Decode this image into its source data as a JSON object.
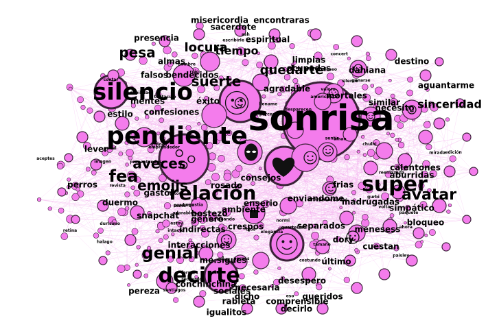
{
  "colors": {
    "node_fill": "#f47cec",
    "node_stroke": "#3a2238",
    "edge": "#f2a6ec",
    "background": "#ffffff"
  },
  "large_labels": [
    "sonrisa",
    "pendiente",
    "silencio",
    "decirte",
    "relación",
    "super",
    "avatar",
    "genial",
    "aveces",
    "fea",
    "emojis",
    "suerte",
    "pesa",
    "locura",
    "quedarte",
    "sinceridad",
    "tiempo"
  ],
  "medium_labels": [
    "ambiente",
    "consejos",
    "separados",
    "indirectas",
    "madrugadas",
    "menesess",
    "simpático",
    "bloqueo",
    "dory",
    "duermo",
    "perros",
    "desespero",
    "queridos",
    "decirlo",
    "necesaria",
    "dicho",
    "interacciones",
    "gastos",
    "calentones",
    "aburridas",
    "frias",
    "enviandome",
    "enserio",
    "rosado",
    "crespos",
    "bostezo",
    "mortales",
    "agradable",
    "estilo",
    "mentes",
    "confesiones",
    "éxito",
    "falsos",
    "bendecidos",
    "presencia",
    "almas",
    "limpias",
    "ocupadas",
    "dahiana",
    "destino",
    "similar",
    "necesito",
    "sacerdote",
    "misericordia",
    "encontraras",
    "espiritual",
    "snapchat",
    "pereza",
    "sociales",
    "rabieta",
    "igualitos",
    "comprensible",
    "conchinchina",
    "lever",
    "me.sigues",
    "aguantarme",
    "cuestan",
    "último",
    "genero"
  ],
  "small_labels": [
    "maricadas",
    "santiagos",
    "panal",
    "volta",
    "pernas",
    "rojo",
    "perdomo",
    "normi",
    "divinos",
    "reenlazada",
    "retina",
    "sumo",
    "llename",
    "durísimo",
    "deseo",
    "desparecen",
    "revista",
    "concert",
    "paisley",
    "costundo",
    "american",
    "adorables",
    "presentandose",
    "edición",
    "tentaculo",
    "quarteizao",
    "paquete",
    "imagen",
    "chulhi",
    "revolcando",
    "gurbi",
    "ganarse",
    "silence",
    "debilidad",
    "angustia",
    "parceros",
    "emprendedor",
    "aceptes",
    "halago",
    "escribirle",
    "estoy",
    "crespo",
    "aman",
    "eso",
    "ash",
    "valoro",
    "sentir",
    "faltou",
    "tamaño",
    "intacto",
    "ojos",
    "hombre",
    "elegancia",
    "mirada",
    "recuerdo",
    "contar",
    "forma",
    "ahora"
  ],
  "emoji_icons": [
    "face-tears-of-joy-icon",
    "alien-icon",
    "heart-icon",
    "mouth-tongue-icon",
    "heart-eyes-icon",
    "stars-icon",
    "devil-face-icon",
    "skull-icon",
    "ghost-icon",
    "grinning-face-icon",
    "fire-icon",
    "clover-icon",
    "black-square-icon",
    "sad-face-icon",
    "monkey-icon",
    "thumbs-icon"
  ]
}
